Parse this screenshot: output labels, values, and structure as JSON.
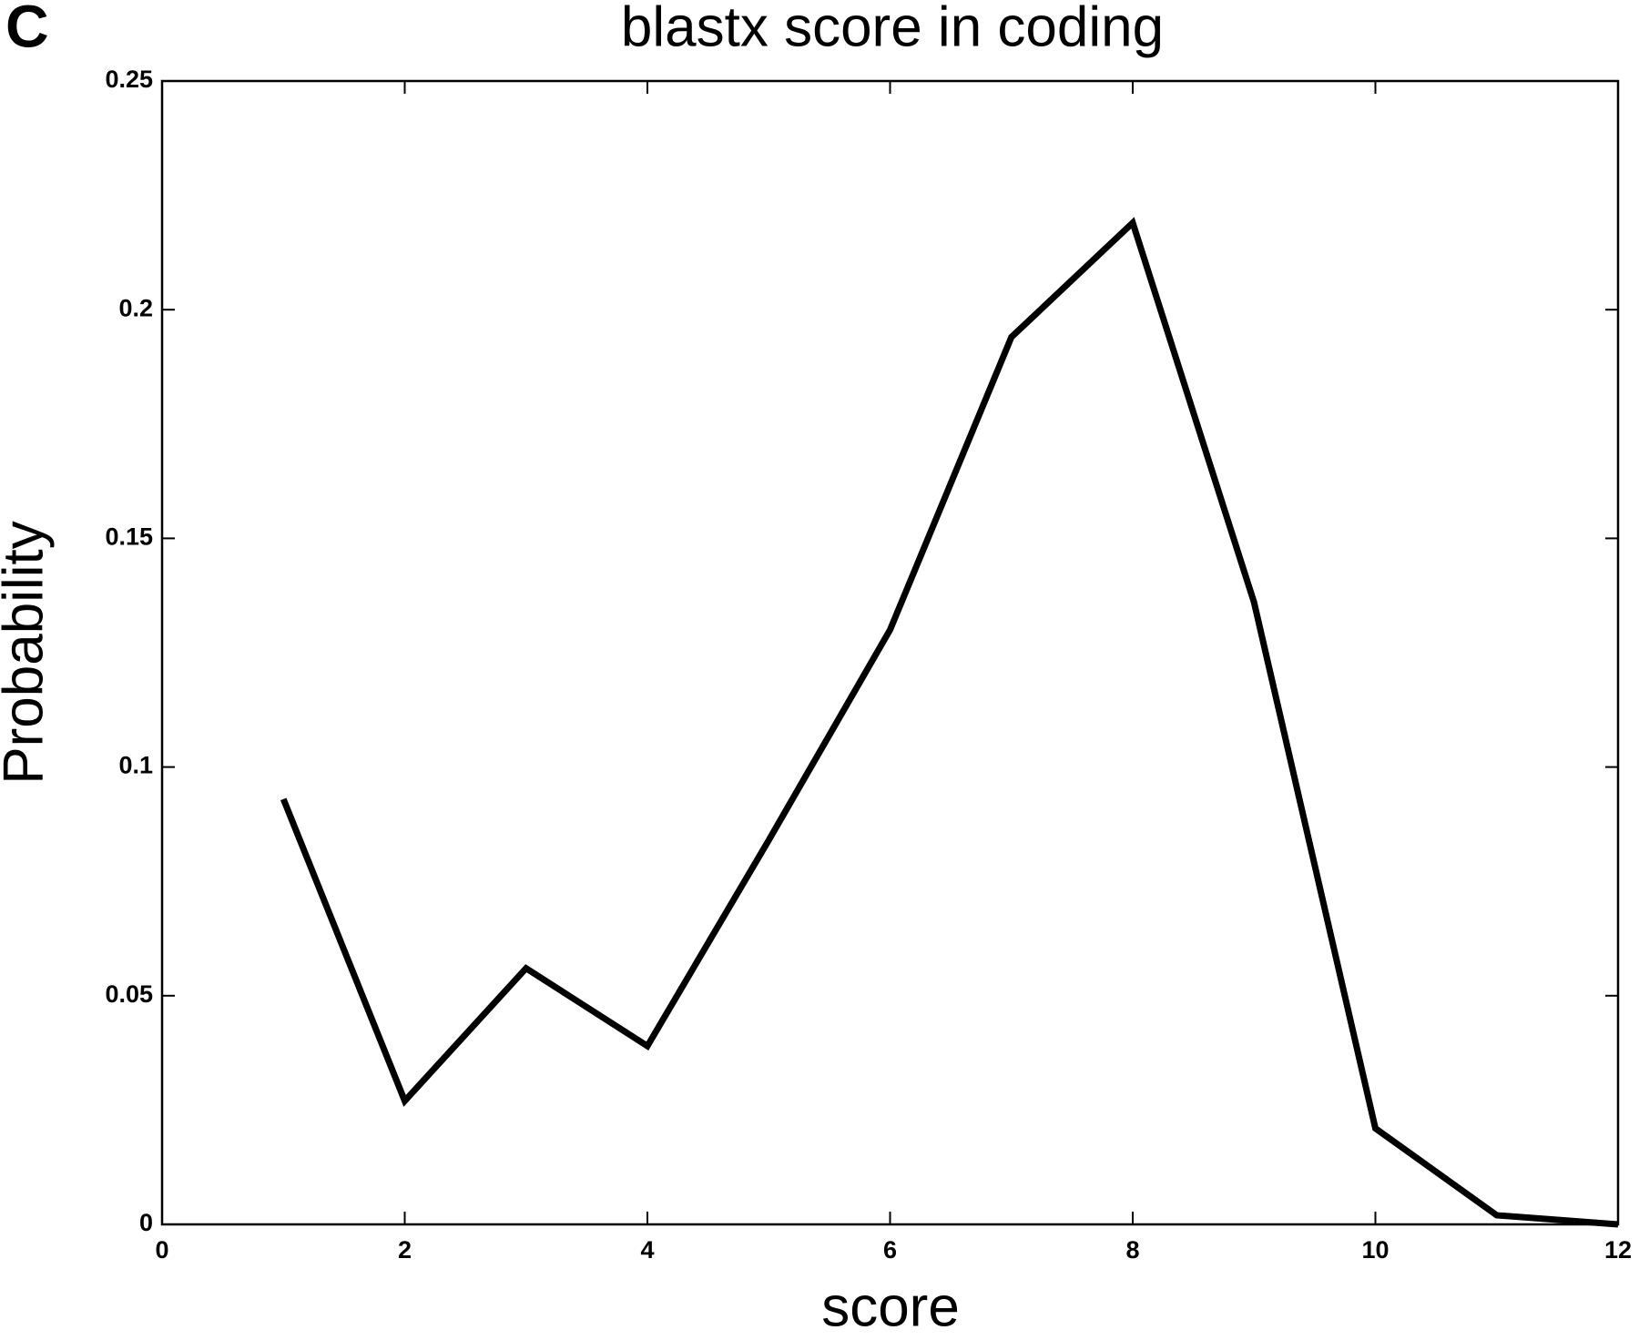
{
  "chart_data": {
    "type": "line",
    "panel_label": "C",
    "title": "blastx score in coding",
    "x_label": "score",
    "y_label": "Probability",
    "x": [
      1,
      2,
      3,
      4,
      5,
      6,
      7,
      8,
      9,
      10,
      11,
      12
    ],
    "series": [
      {
        "color": "#000000",
        "values": [
          0.093,
          0.027,
          0.056,
          0.039,
          0.084,
          0.13,
          0.194,
          0.219,
          0.136,
          0.021,
          0.002,
          0
        ]
      }
    ],
    "xlim": [
      0,
      12
    ],
    "xticks": [
      0,
      2,
      4,
      6,
      8,
      10,
      12
    ],
    "ylim": [
      0,
      0.25
    ],
    "yticks": [
      0,
      0.05,
      0.1,
      0.15,
      0.2,
      0.25
    ],
    "grid": false
  }
}
